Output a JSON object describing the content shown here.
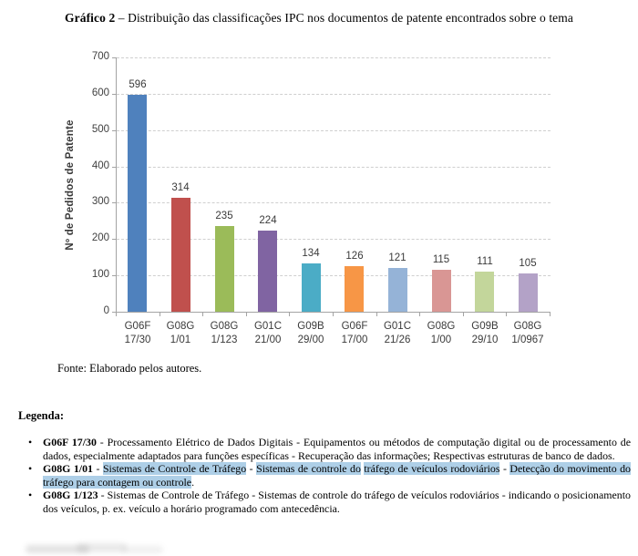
{
  "title": {
    "bold": "Gráfico 2",
    "rest": " – Distribuição das classificações IPC nos documentos de patente encontrados sobre o tema"
  },
  "chart_data": {
    "type": "bar",
    "title": "",
    "xlabel": "",
    "ylabel": "Nº de Pedidos de Patente",
    "ylim": [
      0,
      700
    ],
    "yticks": [
      0,
      100,
      200,
      300,
      400,
      500,
      600,
      700
    ],
    "grid": "horizontal-dashed",
    "legend_position": "none",
    "categories": [
      [
        "G06F",
        "17/30"
      ],
      [
        "G08G",
        "1/01"
      ],
      [
        "G08G",
        "1/123"
      ],
      [
        "G01C",
        "21/00"
      ],
      [
        "G09B",
        "29/00"
      ],
      [
        "G06F",
        "17/00"
      ],
      [
        "G01C",
        "21/26"
      ],
      [
        "G08G",
        "1/00"
      ],
      [
        "G09B",
        "29/10"
      ],
      [
        "G08G",
        "1/0967"
      ]
    ],
    "values": [
      596,
      314,
      235,
      224,
      134,
      126,
      121,
      115,
      111,
      105
    ],
    "bar_colors": [
      "#4F81BD",
      "#C0504D",
      "#9BBB59",
      "#8064A2",
      "#4BACC6",
      "#F79646",
      "#95B3D7",
      "#D99694",
      "#C3D69B",
      "#B3A2C7"
    ]
  },
  "source_note": "Fonte: Elaborado pelos autores.",
  "legend": {
    "heading": "Legenda:",
    "highlight_color": "#aecfe7",
    "items": [
      {
        "code": "G06F 17/30",
        "segments": [
          {
            "text": " - Processamento Elétrico de Dados Digitais - Equipamentos ou métodos de computação digital ou de processamento de dados, especialmente adaptados para funções específicas - Recuperação das informações; Respectivas estruturas de banco de dados.",
            "hl": false
          }
        ]
      },
      {
        "code": "G08G 1/01",
        "segments": [
          {
            "text": " - ",
            "hl": false
          },
          {
            "text": "Sistemas de Controle de Tráfego",
            "hl": true
          },
          {
            "text": " - ",
            "hl": false
          },
          {
            "text": "Sistemas de controle do",
            "hl": true
          },
          {
            "text": " ",
            "hl": false
          },
          {
            "text": "tráfego de veículos rodoviários",
            "hl": true
          },
          {
            "text": " - ",
            "hl": false
          },
          {
            "text": "Detecção do movimento do tráfego para contagem ou controle",
            "hl": true
          },
          {
            "text": ".",
            "hl": false
          }
        ]
      },
      {
        "code": "G08G 1/123",
        "segments": [
          {
            "text": " - Sistemas de Controle de Tráfego - Sistemas de controle do tráfego de veículos rodoviários - indicando o posicionamento dos veículos, p. ex. veículo a horário programado com antecedência.",
            "hl": false
          }
        ]
      }
    ]
  }
}
